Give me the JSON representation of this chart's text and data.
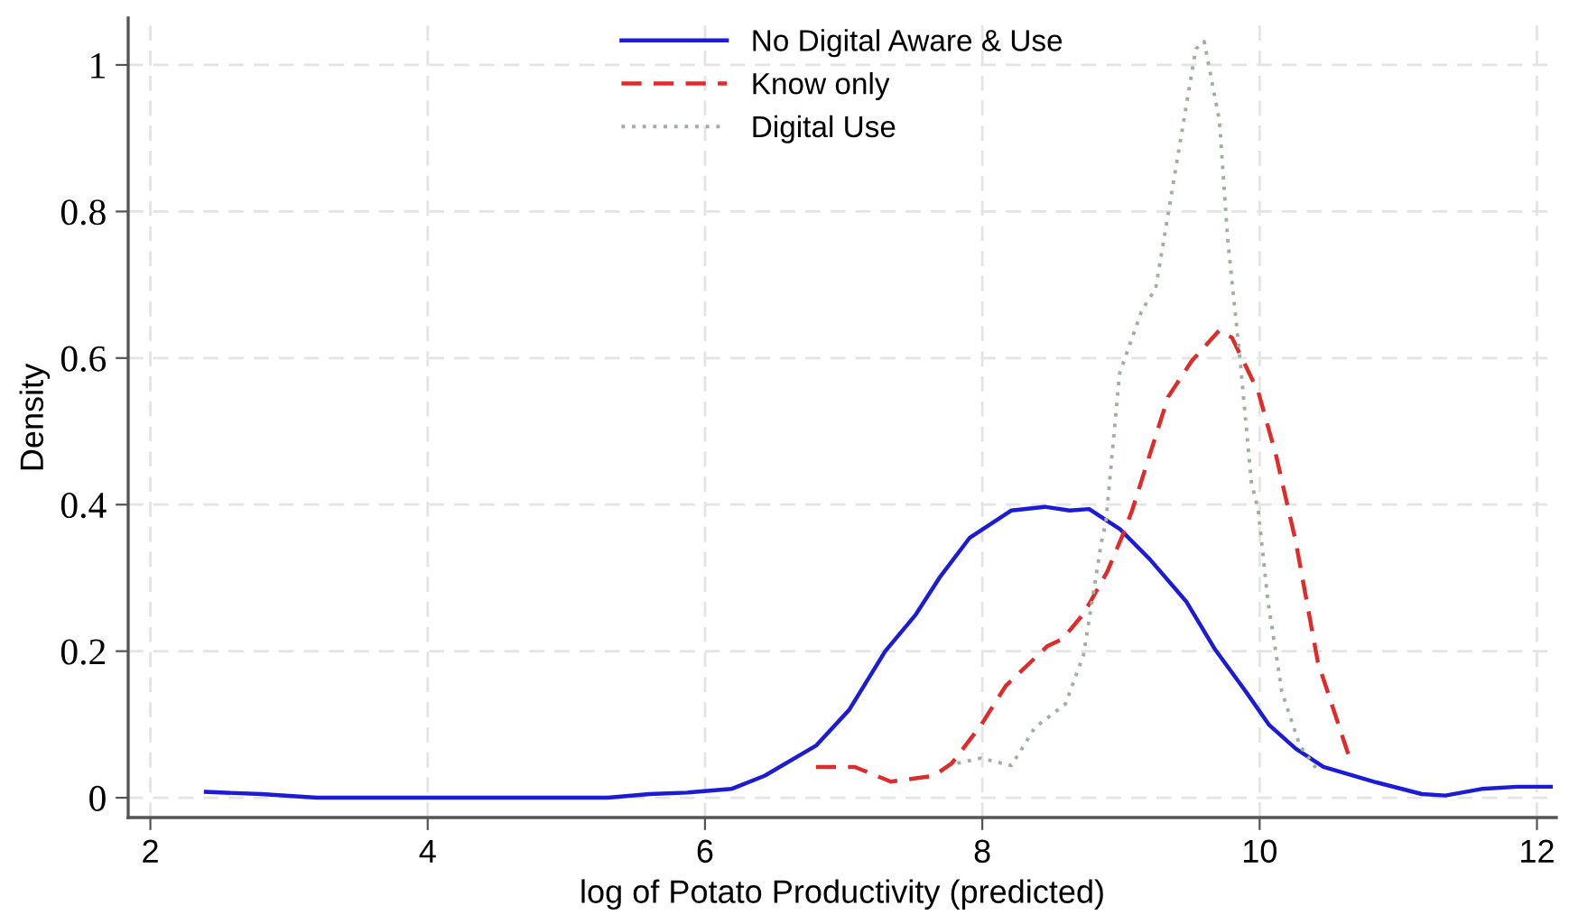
{
  "chart_data": {
    "type": "line",
    "xlabel": "log of Potato Productivity (predicted)",
    "ylabel": "Density",
    "xlim": [
      1.84,
      12.14
    ],
    "ylim": [
      -0.027,
      1.064
    ],
    "xticks": [
      2,
      4,
      6,
      8,
      10,
      12
    ],
    "yticks": [
      0,
      0.2,
      0.4,
      0.6,
      0.8,
      1
    ],
    "grid": true,
    "legend": "top",
    "marker": "none",
    "series": [
      {
        "name": "No Digital Aware & Use",
        "color": "#1c1cd6",
        "line_style": "solid",
        "x": [
          2.4,
          2.8,
          3.2,
          4.0,
          5.0,
          5.3,
          5.6,
          5.87,
          6.19,
          6.43,
          6.8,
          7.04,
          7.3,
          7.52,
          7.69,
          7.91,
          8.21,
          8.45,
          8.63,
          8.77,
          8.99,
          9.21,
          9.47,
          9.68,
          9.9,
          10.07,
          10.26,
          10.46,
          10.82,
          11.17,
          11.34,
          11.6,
          11.86,
          12.1
        ],
        "values": [
          0.008,
          0.005,
          0,
          0,
          0,
          0,
          0.005,
          0.007,
          0.012,
          0.03,
          0.071,
          0.12,
          0.2,
          0.25,
          0.3,
          0.355,
          0.392,
          0.397,
          0.392,
          0.394,
          0.367,
          0.325,
          0.268,
          0.202,
          0.145,
          0.099,
          0.067,
          0.042,
          0.022,
          0.005,
          0.003,
          0.012,
          0.015,
          0.015
        ]
      },
      {
        "name": "Know only",
        "color": "#e02b2b",
        "line_style": "dashed",
        "x": [
          6.8,
          7.08,
          7.34,
          7.65,
          7.78,
          7.99,
          8.17,
          8.47,
          8.58,
          8.73,
          8.9,
          9.02,
          9.08,
          9.34,
          9.51,
          9.71,
          9.8,
          9.99,
          10.12,
          10.26,
          10.42,
          10.64
        ],
        "values": [
          0.042,
          0.042,
          0.022,
          0.03,
          0.047,
          0.099,
          0.153,
          0.207,
          0.217,
          0.251,
          0.308,
          0.362,
          0.392,
          0.547,
          0.596,
          0.638,
          0.628,
          0.554,
          0.466,
          0.35,
          0.185,
          0.059
        ]
      },
      {
        "name": "Digital Use",
        "color": "#9fb09f",
        "line_style": "dotted",
        "x": [
          7.82,
          7.99,
          8.21,
          8.38,
          8.6,
          8.73,
          8.86,
          8.89,
          8.99,
          9.15,
          9.25,
          9.38,
          9.54,
          9.6,
          9.71,
          9.77,
          9.86,
          9.94,
          9.99,
          10.06,
          10.16,
          10.29,
          10.42
        ],
        "values": [
          0.047,
          0.054,
          0.044,
          0.096,
          0.128,
          0.195,
          0.35,
          0.374,
          0.579,
          0.665,
          0.695,
          0.842,
          1.022,
          1.032,
          0.924,
          0.761,
          0.596,
          0.431,
          0.392,
          0.268,
          0.145,
          0.071,
          0.037
        ]
      }
    ]
  }
}
